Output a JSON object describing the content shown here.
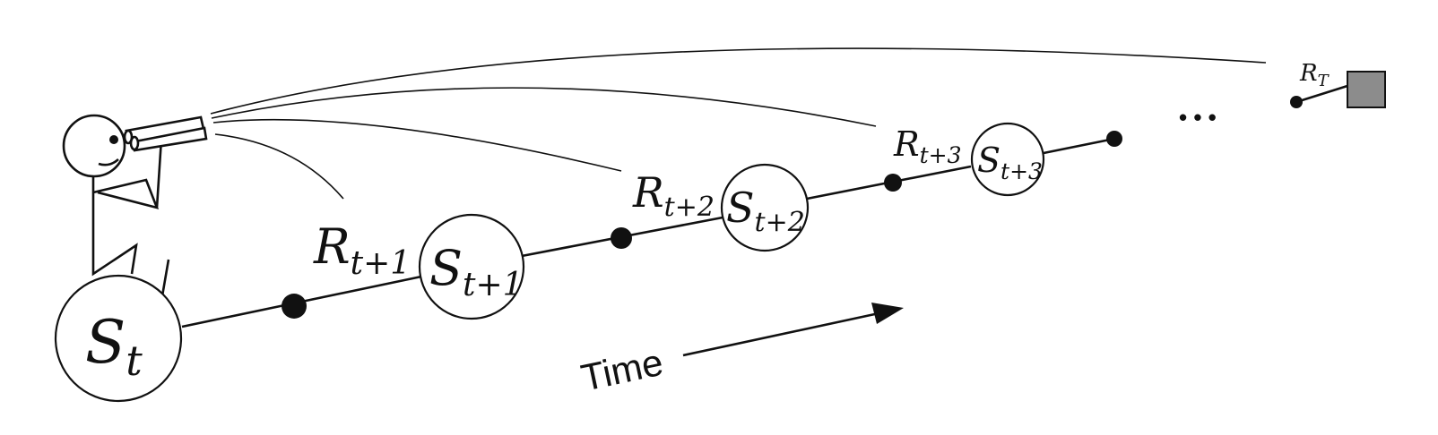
{
  "states": [
    {
      "main": "S",
      "sub": "t"
    },
    {
      "main": "S",
      "sub": "t+1"
    },
    {
      "main": "S",
      "sub": "t+2"
    },
    {
      "main": "S",
      "sub": "t+3"
    }
  ],
  "rewards": [
    {
      "main": "R",
      "sub": "t+1"
    },
    {
      "main": "R",
      "sub": "t+2"
    },
    {
      "main": "R",
      "sub": "t+3"
    },
    {
      "main": "R",
      "sub": "T"
    }
  ],
  "ellipsis": "• • •",
  "time_label": "Time",
  "terminal_color": "#8c8c8c"
}
